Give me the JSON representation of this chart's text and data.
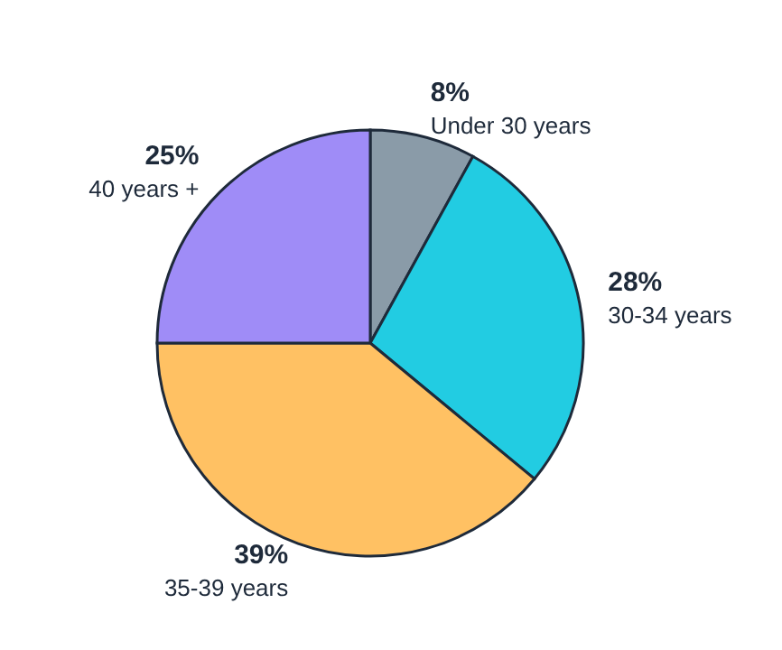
{
  "chart_data": {
    "type": "pie",
    "categories": [
      "Under 30 years",
      "30-34 years",
      "35-39 years",
      "40 years +"
    ],
    "values": [
      8,
      28,
      39,
      25
    ],
    "colors": [
      "#8a9ba8",
      "#22cce2",
      "#ffc163",
      "#9f8cf7"
    ],
    "value_labels": [
      "8%",
      "28%",
      "39%",
      "25%"
    ]
  }
}
